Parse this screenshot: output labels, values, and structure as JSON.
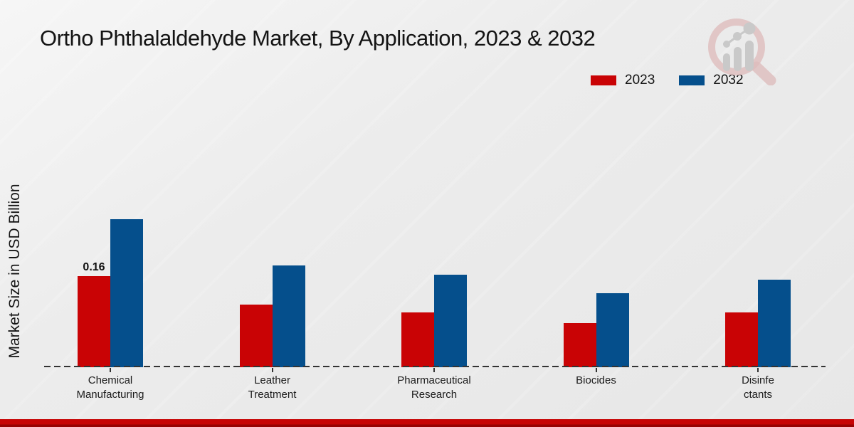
{
  "page": {
    "title": "Ortho Phthalaldehyde Market, By Application, 2023 & 2032"
  },
  "y_axis_label": "Market Size in USD Billion",
  "legend": {
    "items": [
      {
        "label": "2023",
        "color": "#c90305"
      },
      {
        "label": "2032",
        "color": "#054f8c"
      }
    ]
  },
  "branding": {
    "logo_name": "magnifier-growth-chart-logo",
    "footer_bar_color": "#c70404"
  },
  "chart_data": {
    "type": "bar",
    "title": "Ortho Phthalaldehyde Market, By Application, 2023 & 2032",
    "ylabel": "Market Size in USD Billion",
    "xlabel": "",
    "categories": [
      "Chemical Manufacturing",
      "Leather Treatment",
      "Pharmaceutical Research",
      "Biocides",
      "Disinfectants"
    ],
    "category_label_lines": [
      [
        "Chemical",
        "Manufacturing"
      ],
      [
        "Leather",
        "Treatment"
      ],
      [
        "Pharmaceutical",
        "Research"
      ],
      [
        "Biocides"
      ],
      [
        "Disinfe",
        "ctants"
      ]
    ],
    "series": [
      {
        "name": "2023",
        "color": "#c90305",
        "values": [
          0.16,
          0.11,
          0.096,
          0.078,
          0.096
        ]
      },
      {
        "name": "2032",
        "color": "#054f8c",
        "values": [
          0.26,
          0.179,
          0.162,
          0.13,
          0.154
        ]
      }
    ],
    "data_labels": [
      {
        "series_index": 0,
        "category_index": 0,
        "text": "0.16"
      }
    ],
    "ylim": [
      0,
      0.3
    ],
    "grid": false,
    "legend_position": "top-right",
    "baseline_style": "dashed"
  }
}
